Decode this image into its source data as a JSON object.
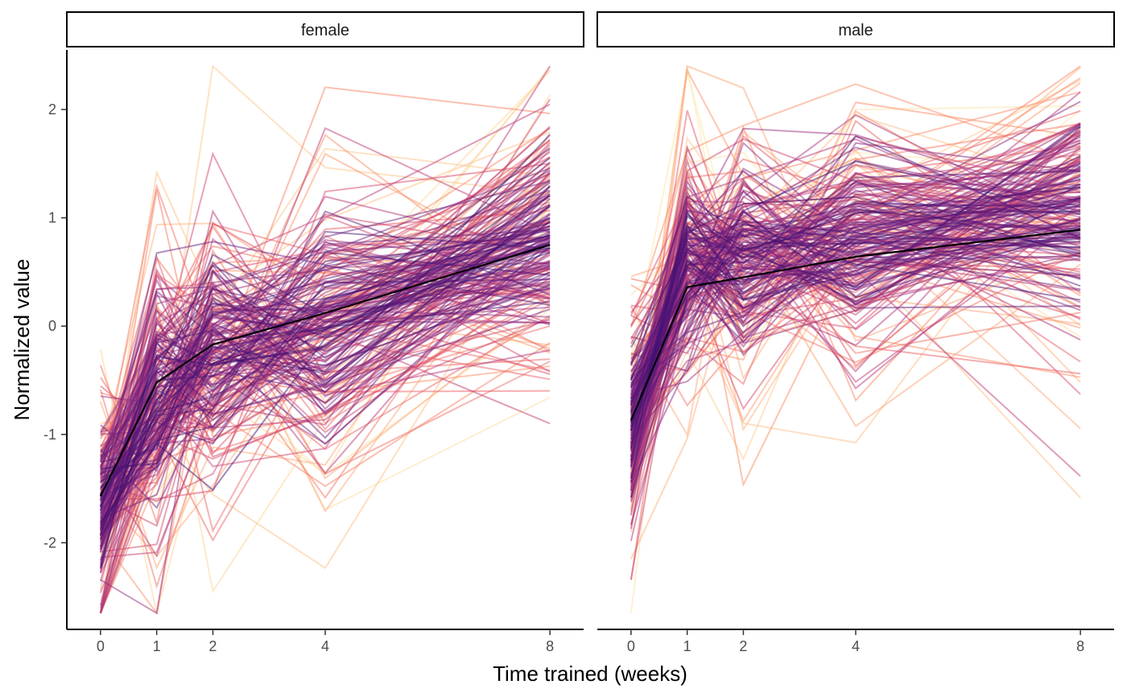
{
  "chart_data": {
    "type": "line",
    "xlabel": "Time trained (weeks)",
    "ylabel": "Normalized value",
    "x": [
      0,
      1,
      2,
      4,
      8
    ],
    "x_ticks": [
      "0",
      "1",
      "2",
      "4",
      "8"
    ],
    "y_ticks": [
      "-2",
      "-1",
      "0",
      "1",
      "2"
    ],
    "xlim": [
      -0.6,
      8.6
    ],
    "ylim": [
      -2.8,
      2.55
    ],
    "grid": false,
    "legend": "none",
    "colormap": [
      "#fcfdbf",
      "#fec287",
      "#fb8761",
      "#e75263",
      "#b73779",
      "#7c2382",
      "#3b0f70"
    ],
    "mean_color": "#000000",
    "panels": [
      {
        "strip": "female",
        "mean_series": {
          "values": [
            -1.57,
            -0.52,
            -0.17,
            0.12,
            0.75
          ]
        },
        "approx_series_count": 220,
        "series_template": {
          "values": [
            -1.7,
            -0.6,
            -0.25,
            0.1,
            0.85
          ]
        },
        "series_spread": [
          0.35,
          0.45,
          0.45,
          0.45,
          0.4
        ]
      },
      {
        "strip": "male",
        "mean_series": {
          "values": [
            -0.87,
            0.36,
            0.45,
            0.64,
            0.89
          ]
        },
        "approx_series_count": 220,
        "series_template": {
          "values": [
            -0.9,
            0.55,
            0.6,
            0.8,
            1.05
          ]
        },
        "series_spread": [
          0.35,
          0.4,
          0.4,
          0.4,
          0.45
        ]
      }
    ]
  }
}
